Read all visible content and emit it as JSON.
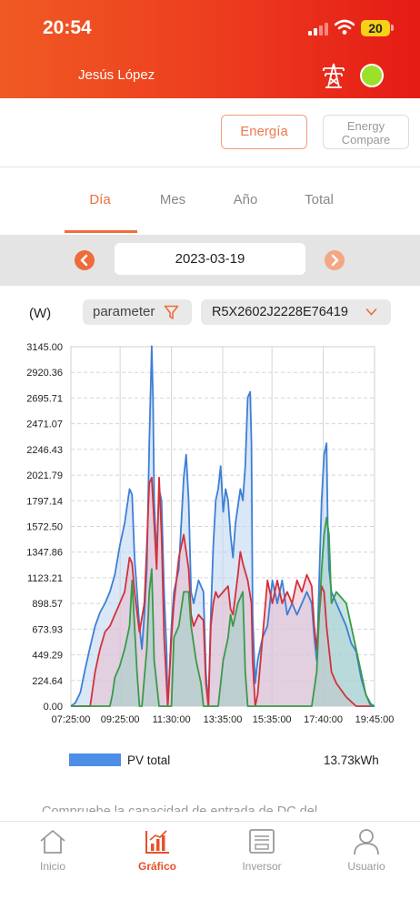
{
  "status_bar": {
    "time": "20:54",
    "battery": "20"
  },
  "header": {
    "user_name": "Jesús López",
    "status_color": "#9be12a"
  },
  "type_buttons": {
    "energia": "Energía",
    "compare": "Energy Compare"
  },
  "tabs": [
    {
      "label": "Día",
      "active": true
    },
    {
      "label": "Mes",
      "active": false
    },
    {
      "label": "Año",
      "active": false
    },
    {
      "label": "Total",
      "active": false
    }
  ],
  "date_nav": {
    "date": "2023-03-19"
  },
  "controls": {
    "unit": "(W)",
    "parameter": "parameter",
    "device": "R5X2602J2228E76419"
  },
  "chart_data": {
    "type": "area",
    "ylabel": "(W)",
    "ylim": [
      0,
      3145
    ],
    "yticks": [
      "3145.00",
      "2920.36",
      "2695.71",
      "2471.07",
      "2246.43",
      "2021.79",
      "1797.14",
      "1572.50",
      "1347.86",
      "1123.21",
      "898.57",
      "673.93",
      "449.29",
      "224.64",
      "0.00"
    ],
    "xticks": [
      "07:25:00",
      "09:25:00",
      "11:30:00",
      "13:35:00",
      "15:35:00",
      "17:40:00",
      "19:45:00"
    ],
    "xlim_hours": [
      7.4167,
      19.75
    ],
    "grid": true,
    "series": [
      {
        "name": "PV total",
        "color": "#3e7fd6",
        "fill": "#b9d3f1",
        "points": [
          [
            7.42,
            0
          ],
          [
            7.6,
            30
          ],
          [
            7.8,
            120
          ],
          [
            8.0,
            330
          ],
          [
            8.2,
            520
          ],
          [
            8.4,
            700
          ],
          [
            8.6,
            820
          ],
          [
            8.8,
            900
          ],
          [
            9.0,
            1000
          ],
          [
            9.2,
            1150
          ],
          [
            9.4,
            1400
          ],
          [
            9.6,
            1600
          ],
          [
            9.8,
            1900
          ],
          [
            9.9,
            1850
          ],
          [
            10.0,
            1300
          ],
          [
            10.1,
            1000
          ],
          [
            10.2,
            700
          ],
          [
            10.3,
            500
          ],
          [
            10.4,
            800
          ],
          [
            10.5,
            1200
          ],
          [
            10.6,
            2300
          ],
          [
            10.7,
            3150
          ],
          [
            10.75,
            2700
          ],
          [
            10.8,
            1800
          ],
          [
            10.9,
            1300
          ],
          [
            11.0,
            1900
          ],
          [
            11.1,
            1800
          ],
          [
            11.2,
            1000
          ],
          [
            11.3,
            500
          ],
          [
            11.35,
            0
          ],
          [
            11.4,
            200
          ],
          [
            11.5,
            700
          ],
          [
            11.6,
            1000
          ],
          [
            11.8,
            1200
          ],
          [
            12.0,
            2000
          ],
          [
            12.1,
            2200
          ],
          [
            12.2,
            1800
          ],
          [
            12.3,
            1000
          ],
          [
            12.4,
            900
          ],
          [
            12.5,
            1000
          ],
          [
            12.6,
            1100
          ],
          [
            12.8,
            1000
          ],
          [
            12.9,
            300
          ],
          [
            13.0,
            0
          ],
          [
            13.1,
            800
          ],
          [
            13.2,
            1400
          ],
          [
            13.3,
            1800
          ],
          [
            13.4,
            1900
          ],
          [
            13.5,
            2100
          ],
          [
            13.6,
            1700
          ],
          [
            13.7,
            1900
          ],
          [
            13.8,
            1800
          ],
          [
            13.9,
            1500
          ],
          [
            14.0,
            1300
          ],
          [
            14.1,
            1600
          ],
          [
            14.3,
            1900
          ],
          [
            14.4,
            1800
          ],
          [
            14.5,
            2100
          ],
          [
            14.6,
            2700
          ],
          [
            14.7,
            2750
          ],
          [
            14.75,
            2300
          ],
          [
            14.8,
            800
          ],
          [
            14.9,
            200
          ],
          [
            15.0,
            400
          ],
          [
            15.2,
            600
          ],
          [
            15.4,
            700
          ],
          [
            15.6,
            1100
          ],
          [
            15.8,
            900
          ],
          [
            16.0,
            1100
          ],
          [
            16.2,
            800
          ],
          [
            16.4,
            900
          ],
          [
            16.6,
            800
          ],
          [
            16.8,
            900
          ],
          [
            17.0,
            1000
          ],
          [
            17.2,
            900
          ],
          [
            17.3,
            600
          ],
          [
            17.4,
            400
          ],
          [
            17.5,
            1100
          ],
          [
            17.6,
            1800
          ],
          [
            17.7,
            2200
          ],
          [
            17.8,
            2300
          ],
          [
            17.85,
            1600
          ],
          [
            17.9,
            1200
          ],
          [
            18.0,
            1000
          ],
          [
            18.2,
            900
          ],
          [
            18.4,
            800
          ],
          [
            18.6,
            700
          ],
          [
            18.8,
            550
          ],
          [
            19.0,
            480
          ],
          [
            19.2,
            250
          ],
          [
            19.4,
            100
          ],
          [
            19.6,
            20
          ],
          [
            19.75,
            0
          ]
        ]
      },
      {
        "name": "",
        "color": "#d3313a",
        "fill": "#e9bccd",
        "points": [
          [
            7.42,
            0
          ],
          [
            8.2,
            0
          ],
          [
            8.4,
            300
          ],
          [
            8.6,
            500
          ],
          [
            8.8,
            650
          ],
          [
            9.0,
            700
          ],
          [
            9.2,
            800
          ],
          [
            9.4,
            900
          ],
          [
            9.6,
            1000
          ],
          [
            9.8,
            1300
          ],
          [
            9.9,
            1250
          ],
          [
            10.0,
            1000
          ],
          [
            10.2,
            650
          ],
          [
            10.4,
            900
          ],
          [
            10.5,
            1400
          ],
          [
            10.6,
            1950
          ],
          [
            10.7,
            2000
          ],
          [
            10.8,
            1600
          ],
          [
            10.9,
            1200
          ],
          [
            11.0,
            2000
          ],
          [
            11.1,
            1500
          ],
          [
            11.2,
            600
          ],
          [
            11.3,
            200
          ],
          [
            11.35,
            0
          ],
          [
            11.5,
            600
          ],
          [
            11.6,
            900
          ],
          [
            11.8,
            1300
          ],
          [
            12.0,
            1500
          ],
          [
            12.2,
            1200
          ],
          [
            12.3,
            800
          ],
          [
            12.4,
            700
          ],
          [
            12.6,
            800
          ],
          [
            12.8,
            750
          ],
          [
            12.9,
            200
          ],
          [
            13.0,
            0
          ],
          [
            13.1,
            700
          ],
          [
            13.2,
            900
          ],
          [
            13.3,
            1000
          ],
          [
            13.4,
            950
          ],
          [
            13.6,
            1000
          ],
          [
            13.8,
            1050
          ],
          [
            13.9,
            850
          ],
          [
            14.0,
            800
          ],
          [
            14.2,
            1150
          ],
          [
            14.3,
            1350
          ],
          [
            14.4,
            1250
          ],
          [
            14.6,
            1100
          ],
          [
            14.75,
            900
          ],
          [
            14.8,
            400
          ],
          [
            14.9,
            0
          ],
          [
            15.0,
            100
          ],
          [
            15.2,
            600
          ],
          [
            15.4,
            1100
          ],
          [
            15.6,
            900
          ],
          [
            15.8,
            1100
          ],
          [
            16.0,
            900
          ],
          [
            16.2,
            1000
          ],
          [
            16.4,
            900
          ],
          [
            16.6,
            1100
          ],
          [
            16.8,
            1000
          ],
          [
            17.0,
            1150
          ],
          [
            17.2,
            1050
          ],
          [
            17.3,
            700
          ],
          [
            17.4,
            500
          ],
          [
            17.5,
            800
          ],
          [
            17.6,
            1050
          ],
          [
            17.7,
            1000
          ],
          [
            17.8,
            700
          ],
          [
            17.9,
            500
          ],
          [
            18.0,
            300
          ],
          [
            18.2,
            200
          ],
          [
            18.6,
            80
          ],
          [
            19.0,
            0
          ],
          [
            19.75,
            0
          ]
        ]
      },
      {
        "name": "",
        "color": "#3a9a4a",
        "fill": "#9fd0c4",
        "points": [
          [
            7.42,
            0
          ],
          [
            9.0,
            0
          ],
          [
            9.1,
            100
          ],
          [
            9.2,
            250
          ],
          [
            9.4,
            350
          ],
          [
            9.6,
            500
          ],
          [
            9.8,
            700
          ],
          [
            9.9,
            1100
          ],
          [
            10.0,
            700
          ],
          [
            10.1,
            300
          ],
          [
            10.2,
            0
          ],
          [
            10.3,
            0
          ],
          [
            10.5,
            500
          ],
          [
            10.6,
            1000
          ],
          [
            10.7,
            1200
          ],
          [
            10.75,
            800
          ],
          [
            10.8,
            400
          ],
          [
            10.9,
            200
          ],
          [
            11.0,
            0
          ],
          [
            11.5,
            0
          ],
          [
            11.6,
            600
          ],
          [
            11.8,
            700
          ],
          [
            12.0,
            1000
          ],
          [
            12.2,
            1000
          ],
          [
            12.3,
            700
          ],
          [
            12.5,
            400
          ],
          [
            12.7,
            200
          ],
          [
            12.8,
            0
          ],
          [
            13.0,
            0
          ],
          [
            13.4,
            0
          ],
          [
            13.6,
            400
          ],
          [
            13.8,
            600
          ],
          [
            13.9,
            800
          ],
          [
            14.0,
            700
          ],
          [
            14.2,
            900
          ],
          [
            14.4,
            1000
          ],
          [
            14.5,
            300
          ],
          [
            14.6,
            0
          ],
          [
            17.2,
            0
          ],
          [
            17.4,
            300
          ],
          [
            17.5,
            800
          ],
          [
            17.6,
            1200
          ],
          [
            17.7,
            1500
          ],
          [
            17.8,
            1650
          ],
          [
            17.9,
            1500
          ],
          [
            18.0,
            900
          ],
          [
            18.2,
            1000
          ],
          [
            18.4,
            950
          ],
          [
            18.6,
            900
          ],
          [
            18.8,
            700
          ],
          [
            19.0,
            500
          ],
          [
            19.2,
            300
          ],
          [
            19.4,
            100
          ],
          [
            19.6,
            0
          ],
          [
            19.75,
            0
          ]
        ]
      }
    ]
  },
  "legend": {
    "label": "PV total",
    "total": "13.73kWh"
  },
  "notice": "Compruebe la capacidad de entrada de DC del",
  "bottom_nav": [
    {
      "label": "Inicio",
      "icon": "home-icon",
      "active": false
    },
    {
      "label": "Gráfico",
      "icon": "chart-icon",
      "active": true
    },
    {
      "label": "Inversor",
      "icon": "inverter-icon",
      "active": false
    },
    {
      "label": "Usuario",
      "icon": "user-icon",
      "active": false
    }
  ]
}
